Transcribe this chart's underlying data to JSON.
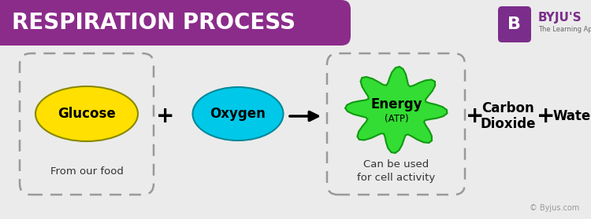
{
  "title": "RESPIRATION PROCESS",
  "title_bg_color": "#8B2C8B",
  "title_text_color": "#FFFFFF",
  "bg_color": "#EBEBEB",
  "glucose_label": "Glucose",
  "glucose_color": "#FFE000",
  "glucose_edge_color": "#888800",
  "glucose_text_color": "#000000",
  "glucose_box_label": "From our food",
  "oxygen_label": "Oxygen",
  "oxygen_color": "#00C8E8",
  "oxygen_edge_color": "#008899",
  "oxygen_text_color": "#000000",
  "energy_label": "Energy",
  "energy_sub_label": "(ATP)",
  "energy_color": "#33DD33",
  "energy_edge_color": "#119911",
  "energy_text_color": "#000000",
  "energy_box_label": "Can be used\nfor cell activity",
  "co2_label": "Carbon\nDioxide",
  "water_label": "Water",
  "plus_color": "#000000",
  "arrow_color": "#000000",
  "dashed_box_color": "#999999",
  "copyright": "© Byjus.com",
  "logo_text": "BYJU'S",
  "logo_sub": "The Learning App",
  "logo_color": "#7B2D8B"
}
